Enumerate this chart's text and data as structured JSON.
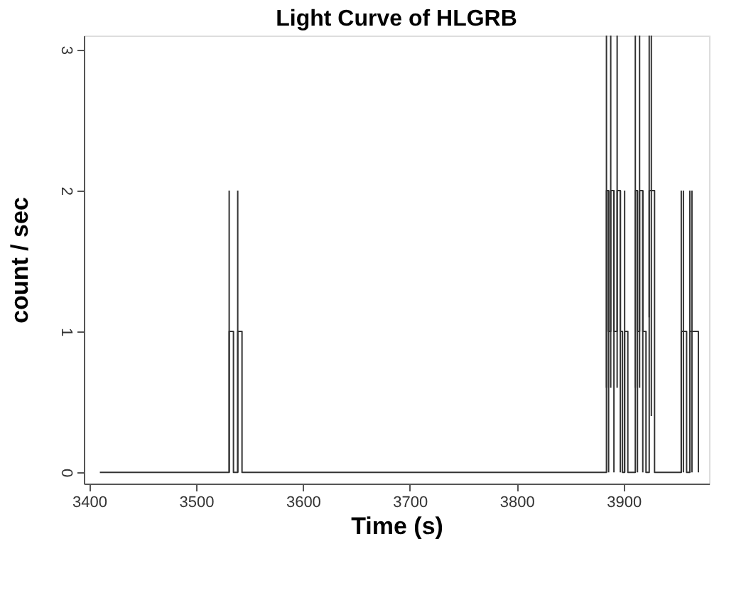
{
  "chart_data": {
    "type": "step",
    "title": "Light Curve of HLGRB",
    "xlabel": "Time (s)",
    "ylabel": "count / sec",
    "x": [
      3410,
      3531,
      3535,
      3539,
      3543,
      3880,
      3884,
      3886,
      3888,
      3891,
      3894,
      3897,
      3899,
      3901,
      3904,
      3911,
      3913,
      3915,
      3918,
      3921,
      3924,
      3926,
      3929,
      3954,
      3956,
      3959,
      3962,
      3964,
      3970
    ],
    "series": [
      {
        "color": "#333333",
        "values": [
          0,
          1,
          0,
          1,
          0,
          0,
          2,
          1,
          2,
          1,
          2,
          1,
          0,
          1,
          0,
          2,
          1,
          2,
          1,
          0,
          2,
          2,
          0,
          1,
          1,
          0,
          1,
          1,
          0
        ],
        "errors": [
          null,
          [
            0,
            2
          ],
          null,
          [
            0,
            2
          ],
          null,
          null,
          [
            0.6,
            3.1
          ],
          [
            0,
            2
          ],
          [
            0.6,
            3.1
          ],
          [
            0,
            2
          ],
          [
            0.6,
            3.1
          ],
          [
            0,
            2
          ],
          null,
          [
            0,
            2
          ],
          null,
          [
            0.6,
            3.1
          ],
          [
            0,
            2
          ],
          [
            0.6,
            3.1
          ],
          [
            0,
            2
          ],
          null,
          [
            1.1,
            3.1
          ],
          [
            0.4,
            3.1
          ],
          null,
          [
            0,
            2
          ],
          [
            0,
            2
          ],
          null,
          [
            0,
            2
          ],
          [
            0,
            2
          ],
          null
        ]
      }
    ],
    "xlim": [
      3395,
      3980
    ],
    "ylim": [
      -0.08,
      3.1
    ],
    "xticks": [
      3400,
      3500,
      3600,
      3700,
      3800,
      3900
    ],
    "yticks": [
      0,
      1,
      2,
      3
    ],
    "grid": false,
    "marker": "none",
    "line_style": "solid"
  }
}
